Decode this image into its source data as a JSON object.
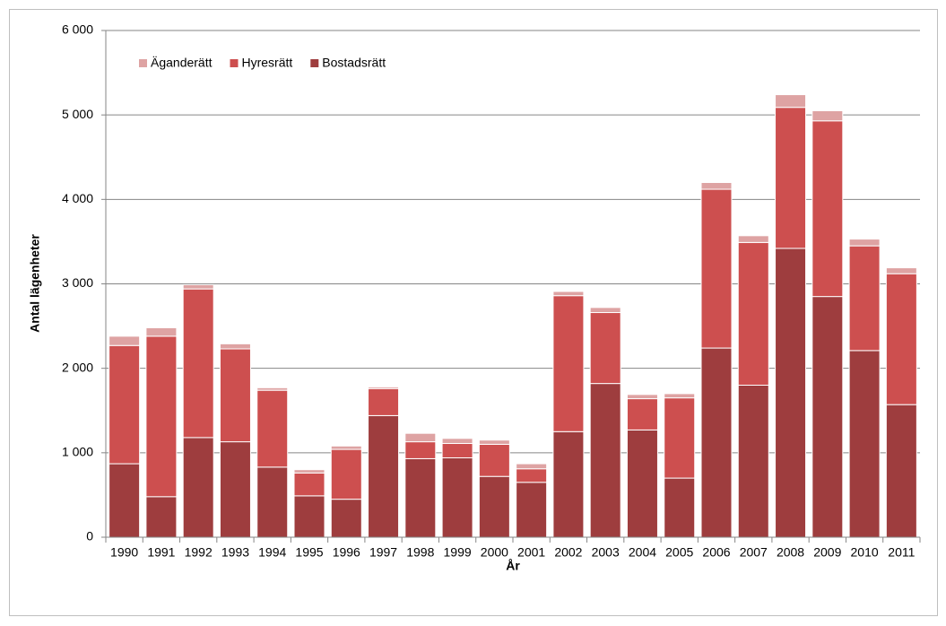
{
  "chart_data": {
    "type": "stacked_bar",
    "x_label": "År",
    "y_label": "Antal lägenheter",
    "categories": [
      "1990",
      "1991",
      "1992",
      "1993",
      "1994",
      "1995",
      "1996",
      "1997",
      "1998",
      "1999",
      "2000",
      "2001",
      "2002",
      "2003",
      "2004",
      "2005",
      "2006",
      "2007",
      "2008",
      "2009",
      "2010",
      "2011"
    ],
    "series": [
      {
        "name": "Bostadsrätt",
        "color": "#9e3d3e",
        "values": [
          870,
          480,
          1180,
          1130,
          830,
          490,
          450,
          1440,
          930,
          940,
          720,
          650,
          1250,
          1820,
          1270,
          700,
          2240,
          1800,
          3420,
          2850,
          2210,
          1570
        ]
      },
      {
        "name": "Hyresrätt",
        "color": "#cd4f4f",
        "values": [
          1400,
          1900,
          1760,
          1100,
          910,
          270,
          590,
          320,
          200,
          170,
          380,
          160,
          1610,
          840,
          370,
          950,
          1880,
          1690,
          1670,
          2080,
          1240,
          1550
        ]
      },
      {
        "name": "Äganderätt",
        "color": "#dea3a3",
        "values": [
          110,
          100,
          50,
          60,
          30,
          40,
          40,
          20,
          100,
          60,
          50,
          60,
          50,
          60,
          50,
          50,
          80,
          80,
          150,
          120,
          80,
          70
        ]
      }
    ],
    "ylim": [
      0,
      6000
    ],
    "yticks": [
      0,
      {
        "value": 1000,
        "label": "1 000"
      },
      {
        "value": 2000,
        "label": "2 000"
      },
      {
        "value": 3000,
        "label": "3 000"
      },
      {
        "value": 4000,
        "label": "4 000"
      },
      {
        "value": 5000,
        "label": "5 000"
      },
      {
        "value": 6000,
        "label": "6 000"
      }
    ],
    "grid": true,
    "legend": "top-left"
  }
}
